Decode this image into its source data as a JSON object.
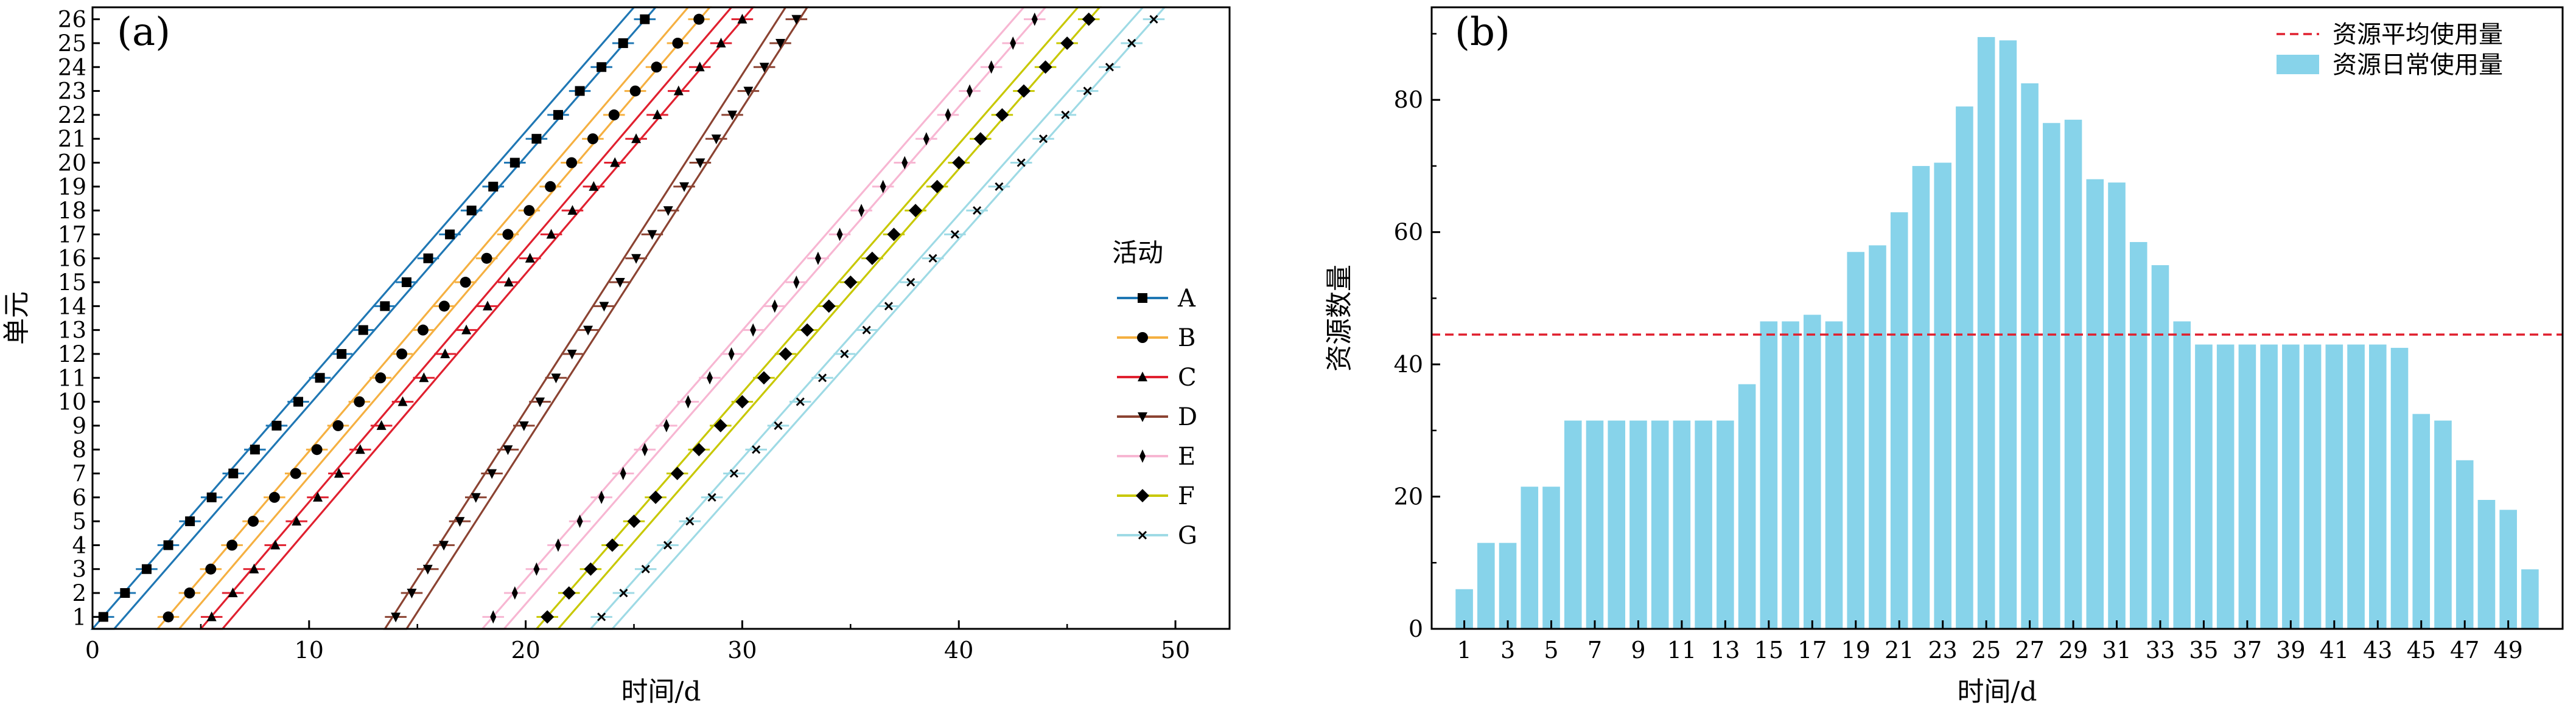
{
  "colors": {
    "A": "#1f77b4",
    "B": "#f5b041",
    "C": "#e0202f",
    "D": "#8b4332",
    "E": "#f7b6d2",
    "F": "#c8c800",
    "G": "#9edae5",
    "bar": "#87d3ea",
    "avg_line": "#e0202f"
  },
  "chart_data": [
    {
      "type": "line",
      "panel_label": "(a)",
      "xlabel": "时间/d",
      "ylabel": "单元",
      "xlim": [
        0,
        52.5
      ],
      "ylim": [
        0.5,
        26.5
      ],
      "xticks": [
        0,
        10,
        20,
        30,
        40,
        50
      ],
      "yticks": [
        1,
        2,
        3,
        4,
        5,
        6,
        7,
        8,
        9,
        10,
        11,
        12,
        13,
        14,
        15,
        16,
        17,
        18,
        19,
        20,
        21,
        22,
        23,
        24,
        25,
        26
      ],
      "legend_title": "活动",
      "legend_position": "center-right",
      "units": [
        1,
        2,
        3,
        4,
        5,
        6,
        7,
        8,
        9,
        10,
        11,
        12,
        13,
        14,
        15,
        16,
        17,
        18,
        19,
        20,
        21,
        22,
        23,
        24,
        25,
        26
      ],
      "series": [
        {
          "name": "A",
          "marker": "square",
          "start": 0,
          "finish": 26,
          "durations": [
            1,
            1,
            1,
            1,
            1,
            1,
            1,
            1,
            1,
            1,
            1,
            1,
            1,
            1,
            1,
            1,
            1,
            1,
            1,
            1,
            1,
            1,
            1,
            1,
            1,
            1
          ]
        },
        {
          "name": "B",
          "marker": "circle",
          "start": 3,
          "finish": 28.5,
          "durations": [
            1,
            1,
            1,
            1,
            1,
            1,
            1,
            1,
            1,
            1,
            1,
            1,
            1,
            1,
            1,
            1,
            1,
            1,
            1,
            1,
            1,
            1,
            1,
            1,
            1,
            1
          ]
        },
        {
          "name": "C",
          "marker": "triangle-up",
          "start": 5,
          "finish": 30.5,
          "durations": [
            1,
            1,
            1,
            1,
            1,
            1,
            1,
            1,
            1,
            1,
            1,
            1,
            1,
            1,
            1,
            1,
            1,
            1,
            1,
            1,
            1,
            1,
            1,
            1,
            1,
            1
          ]
        },
        {
          "name": "D",
          "marker": "triangle-down",
          "start": 13.5,
          "finish": 33,
          "durations": [
            1,
            1,
            1,
            1,
            1,
            1,
            1,
            1,
            1,
            1,
            1,
            1,
            1,
            1,
            1,
            1,
            1,
            1,
            1,
            1,
            1,
            1,
            1,
            1,
            1,
            1
          ]
        },
        {
          "name": "E",
          "marker": "thin-diamond",
          "start": 18,
          "finish": 44,
          "durations": [
            1,
            1,
            1,
            1,
            1,
            1,
            1,
            1,
            1,
            1,
            1,
            1,
            1,
            1,
            1,
            1,
            1,
            1,
            1,
            1,
            1,
            1,
            1,
            1,
            1,
            1
          ]
        },
        {
          "name": "F",
          "marker": "diamond",
          "start": 20.5,
          "finish": 46.5,
          "durations": [
            1,
            1,
            1,
            1,
            1,
            1,
            1,
            1,
            1,
            1,
            1,
            1,
            1,
            1,
            1,
            1,
            1,
            1,
            1,
            1,
            1,
            1,
            1,
            1,
            1,
            1
          ]
        },
        {
          "name": "G",
          "marker": "x",
          "start": 23,
          "finish": 49.5,
          "durations": [
            1,
            1,
            1,
            1,
            1,
            1,
            1,
            1,
            1,
            1,
            1,
            1,
            1,
            1,
            1,
            1,
            1,
            1,
            1,
            1,
            1,
            1,
            1,
            1,
            1,
            1
          ]
        }
      ]
    },
    {
      "type": "bar",
      "panel_label": "(b)",
      "xlabel": "时间/d",
      "ylabel": "资源数量",
      "ylim": [
        0,
        94
      ],
      "yticks": [
        0,
        20,
        40,
        60,
        80
      ],
      "xticks": [
        1,
        3,
        5,
        7,
        9,
        11,
        13,
        15,
        17,
        19,
        21,
        23,
        25,
        27,
        29,
        31,
        33,
        35,
        37,
        39,
        41,
        43,
        45,
        47,
        49
      ],
      "legend_position": "top-right",
      "days": [
        1,
        2,
        3,
        4,
        5,
        6,
        7,
        8,
        9,
        10,
        11,
        12,
        13,
        14,
        15,
        16,
        17,
        18,
        19,
        20,
        21,
        22,
        23,
        24,
        25,
        26,
        27,
        28,
        29,
        30,
        31,
        32,
        33,
        34,
        35,
        36,
        37,
        38,
        39,
        40,
        41,
        42,
        43,
        44,
        45,
        46,
        47,
        48,
        49,
        50
      ],
      "values": [
        6,
        13,
        13,
        21.5,
        21.5,
        31.5,
        31.5,
        31.5,
        31.5,
        31.5,
        31.5,
        31.5,
        31.5,
        37,
        46.5,
        46.5,
        47.5,
        46.5,
        57,
        58,
        63,
        70,
        70.5,
        79,
        89.5,
        89,
        82.5,
        76.5,
        77,
        68,
        67.5,
        58.5,
        55,
        46.5,
        43,
        43,
        43,
        43,
        43,
        43,
        43,
        43,
        43,
        42.5,
        32.5,
        31.5,
        25.5,
        19.5,
        18,
        9
      ],
      "average": 44.5,
      "series": [
        {
          "name": "资源平均使用量",
          "kind": "dashed-line"
        },
        {
          "name": "资源日常使用量",
          "kind": "bar"
        }
      ]
    }
  ]
}
